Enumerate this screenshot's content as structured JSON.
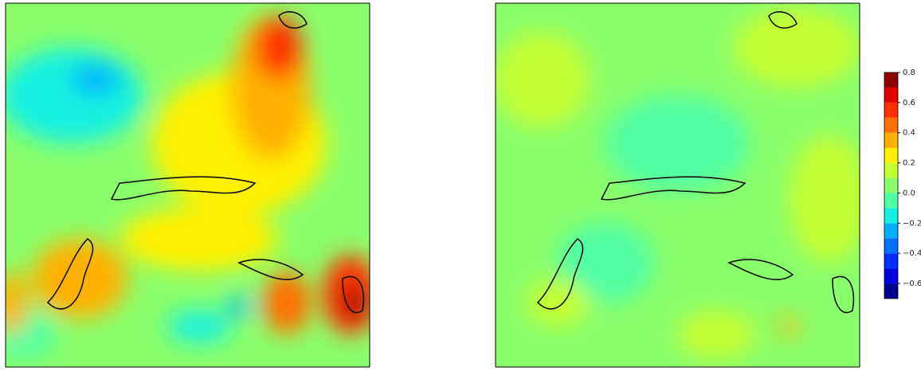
{
  "chart_data": {
    "type": "contourf",
    "clim": [
      -0.7,
      0.8
    ],
    "levels": [
      -0.7,
      -0.6,
      -0.5,
      -0.4,
      -0.3,
      -0.2,
      -0.1,
      0,
      0.1,
      0.2,
      0.3,
      0.4,
      0.5,
      0.6,
      0.7,
      0.8
    ],
    "colors": [
      "#00008f",
      "#0000e0",
      "#0030ff",
      "#0070ff",
      "#00b0ff",
      "#16f0e0",
      "#50ffa6",
      "#8aff6c",
      "#c4ff33",
      "#fff000",
      "#ffb000",
      "#ff7000",
      "#ff3000",
      "#e00000",
      "#8f0000"
    ],
    "cticks": [
      0.8,
      0.6,
      0.4,
      0.2,
      {
        "value": 0,
        "label": "0.0"
      },
      {
        "value": -0.2,
        "label": "−0.2"
      },
      {
        "value": -0.4,
        "label": "−0.4"
      },
      {
        "value": -0.6,
        "label": "−0.6"
      }
    ]
  }
}
